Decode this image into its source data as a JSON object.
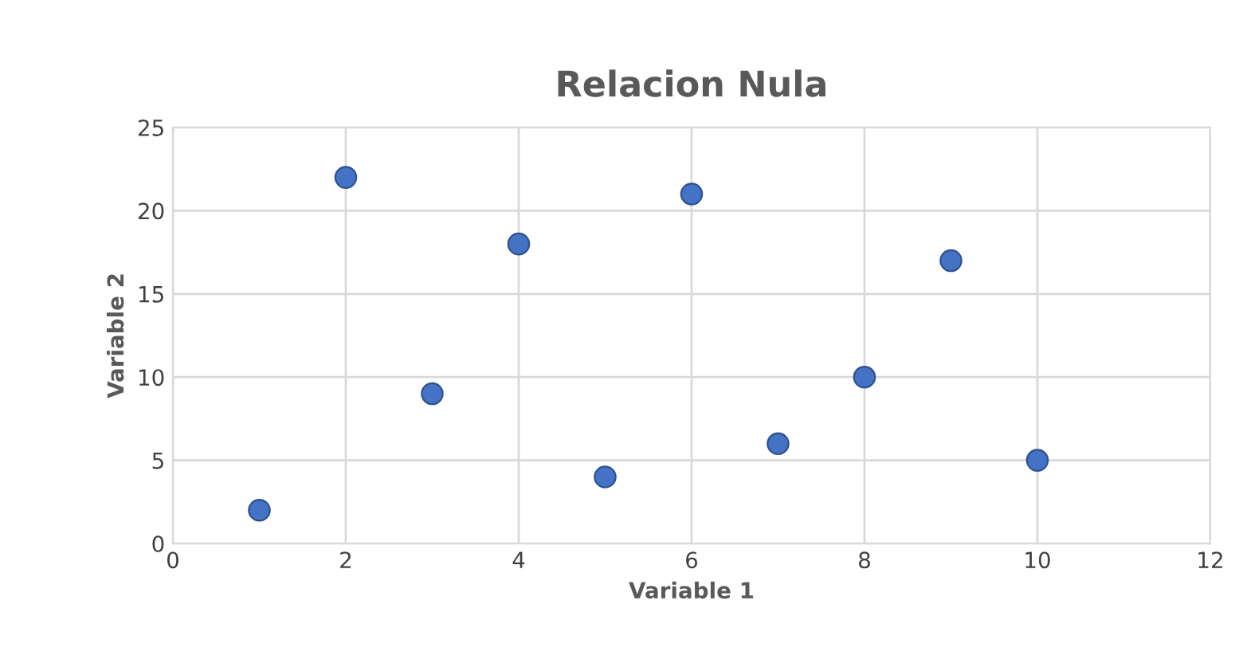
{
  "chart_data": {
    "type": "scatter",
    "title": "Relacion Nula",
    "xlabel": "Variable 1",
    "ylabel": "Variable 2",
    "x": [
      1,
      2,
      3,
      4,
      5,
      6,
      7,
      8,
      9,
      10
    ],
    "series": [
      {
        "color": "#4472c4",
        "values": [
          2,
          22,
          9,
          18,
          4,
          21,
          6,
          10,
          17,
          5
        ]
      }
    ],
    "xlim": [
      0,
      12
    ],
    "ylim": [
      0,
      25
    ],
    "xticks": [
      0,
      2,
      4,
      6,
      8,
      10,
      12
    ],
    "yticks": [
      0,
      5,
      10,
      15,
      20,
      25
    ],
    "grid": true,
    "marker": "circle",
    "legend": false
  }
}
